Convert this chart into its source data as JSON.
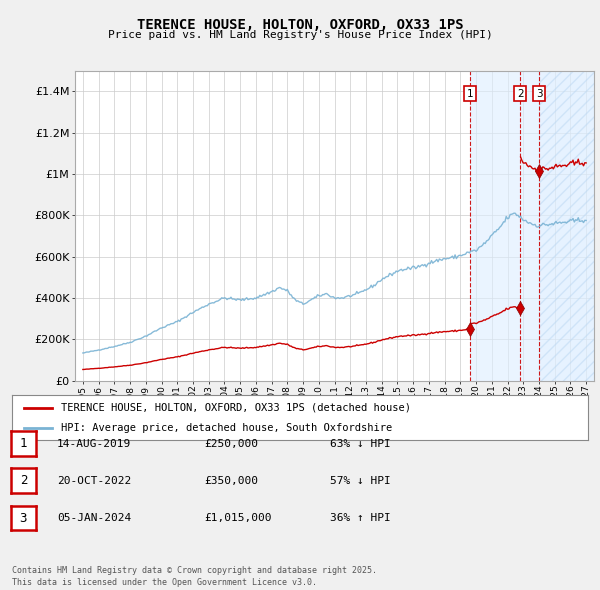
{
  "title": "TERENCE HOUSE, HOLTON, OXFORD, OX33 1PS",
  "subtitle": "Price paid vs. HM Land Registry's House Price Index (HPI)",
  "price_years": [
    2019.62,
    2022.8,
    2024.02
  ],
  "price_values": [
    250000,
    350000,
    1015000
  ],
  "price_labels": [
    "1",
    "2",
    "3"
  ],
  "sale_dates": [
    "14-AUG-2019",
    "20-OCT-2022",
    "05-JAN-2024"
  ],
  "sale_prices": [
    "£250,000",
    "£350,000",
    "£1,015,000"
  ],
  "sale_hpi": [
    "63% ↓ HPI",
    "57% ↓ HPI",
    "36% ↑ HPI"
  ],
  "hpi_color": "#7ab3d4",
  "price_color": "#cc0000",
  "ylim": [
    0,
    1500000
  ],
  "yticks": [
    0,
    200000,
    400000,
    600000,
    800000,
    1000000,
    1200000,
    1400000
  ],
  "ytick_labels": [
    "£0",
    "£200K",
    "£400K",
    "£600K",
    "£800K",
    "£1M",
    "£1.2M",
    "£1.4M"
  ],
  "xlim_start": 1994.5,
  "xlim_end": 2027.5,
  "background_color": "#f0f0f0",
  "plot_bg_color": "#ffffff",
  "grid_color": "#cccccc",
  "legend_label_red": "TERENCE HOUSE, HOLTON, OXFORD, OX33 1PS (detached house)",
  "legend_label_blue": "HPI: Average price, detached house, South Oxfordshire",
  "footer": "Contains HM Land Registry data © Crown copyright and database right 2025.\nThis data is licensed under the Open Government Licence v3.0."
}
